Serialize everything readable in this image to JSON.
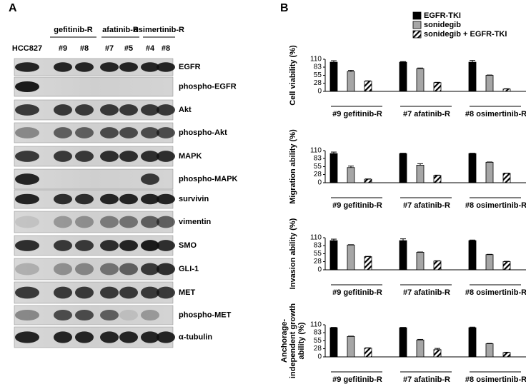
{
  "panel_a": {
    "label": "A",
    "groups": [
      "gefitinib-R",
      "afatinib-R",
      "osimertinib-R"
    ],
    "lanes": [
      "HCC827",
      "#9",
      "#8",
      "#7",
      "#5",
      "#4",
      "#8"
    ],
    "rows": [
      "EGFR",
      "phospho-EGFR",
      "Akt",
      "phospho-Akt",
      "MAPK",
      "phospho-MAPK",
      "survivin",
      "vimentin",
      "SMO",
      "GLI-1",
      "MET",
      "phospho-MET",
      "α-tubulin"
    ]
  },
  "panel_b_label": "B",
  "chart_data": [
    {
      "type": "bar",
      "ylabel": [
        "Cell viability (%)"
      ],
      "categories": [
        "#9 gefitinib-R",
        "#7 afatinib-R",
        "#8 osimertinib-R"
      ],
      "ylim": [
        0,
        110
      ],
      "yticks": [
        0,
        28,
        55,
        83,
        110
      ],
      "series": [
        {
          "name": "EGFR-TKI",
          "color": "#000000",
          "values": [
            100,
            100,
            100
          ],
          "errors": [
            5,
            2,
            6
          ]
        },
        {
          "name": "sonidegib",
          "color": "#a6a6a6",
          "values": [
            68,
            78,
            55
          ],
          "errors": [
            4,
            2,
            1
          ]
        },
        {
          "name": "sonidegib + EGFR-TKI",
          "color": "hatch",
          "values": [
            35,
            30,
            8
          ],
          "errors": [
            1,
            1,
            1
          ]
        }
      ]
    },
    {
      "type": "bar",
      "ylabel": [
        "Migration ability (%)"
      ],
      "categories": [
        "#9 gefitinib-R",
        "#7 afatinib-R",
        "#8 osimertinib-R"
      ],
      "ylim": [
        0,
        110
      ],
      "yticks": [
        0,
        28,
        55,
        83,
        110
      ],
      "series": [
        {
          "color": "#000000",
          "values": [
            100,
            100,
            100
          ],
          "errors": [
            5,
            1,
            1
          ]
        },
        {
          "color": "#a6a6a6",
          "values": [
            52,
            60,
            70
          ],
          "errors": [
            5,
            5,
            1
          ]
        },
        {
          "color": "hatch",
          "values": [
            12,
            25,
            32
          ],
          "errors": [
            1,
            1,
            1
          ]
        }
      ]
    },
    {
      "type": "bar",
      "ylabel": [
        "Invasion ability (%)"
      ],
      "categories": [
        "#9 gefitinib-R",
        "#7 afatinib-R",
        "#8 osimertinib-R"
      ],
      "ylim": [
        0,
        110
      ],
      "yticks": [
        0,
        28,
        55,
        83,
        110
      ],
      "series": [
        {
          "color": "#000000",
          "values": [
            100,
            100,
            100
          ],
          "errors": [
            5,
            6,
            2
          ]
        },
        {
          "color": "#a6a6a6",
          "values": [
            85,
            60,
            52
          ],
          "errors": [
            1,
            1,
            1
          ]
        },
        {
          "color": "hatch",
          "values": [
            45,
            30,
            28
          ],
          "errors": [
            1,
            1,
            1
          ]
        }
      ]
    },
    {
      "type": "bar",
      "ylabel": [
        "Anchorage-",
        "independent growth",
        "ability (%)"
      ],
      "categories": [
        "#9 gefitinib-R",
        "#7 afatinib-R",
        "#8 osimertinib-R"
      ],
      "ylim": [
        0,
        110
      ],
      "yticks": [
        0,
        28,
        55,
        83,
        110
      ],
      "series": [
        {
          "color": "#000000",
          "values": [
            100,
            100,
            100
          ],
          "errors": [
            1,
            1,
            2
          ]
        },
        {
          "color": "#a6a6a6",
          "values": [
            70,
            58,
            45
          ],
          "errors": [
            1,
            2,
            1
          ]
        },
        {
          "color": "hatch",
          "values": [
            30,
            25,
            15
          ],
          "errors": [
            1,
            4,
            1
          ]
        }
      ]
    }
  ]
}
